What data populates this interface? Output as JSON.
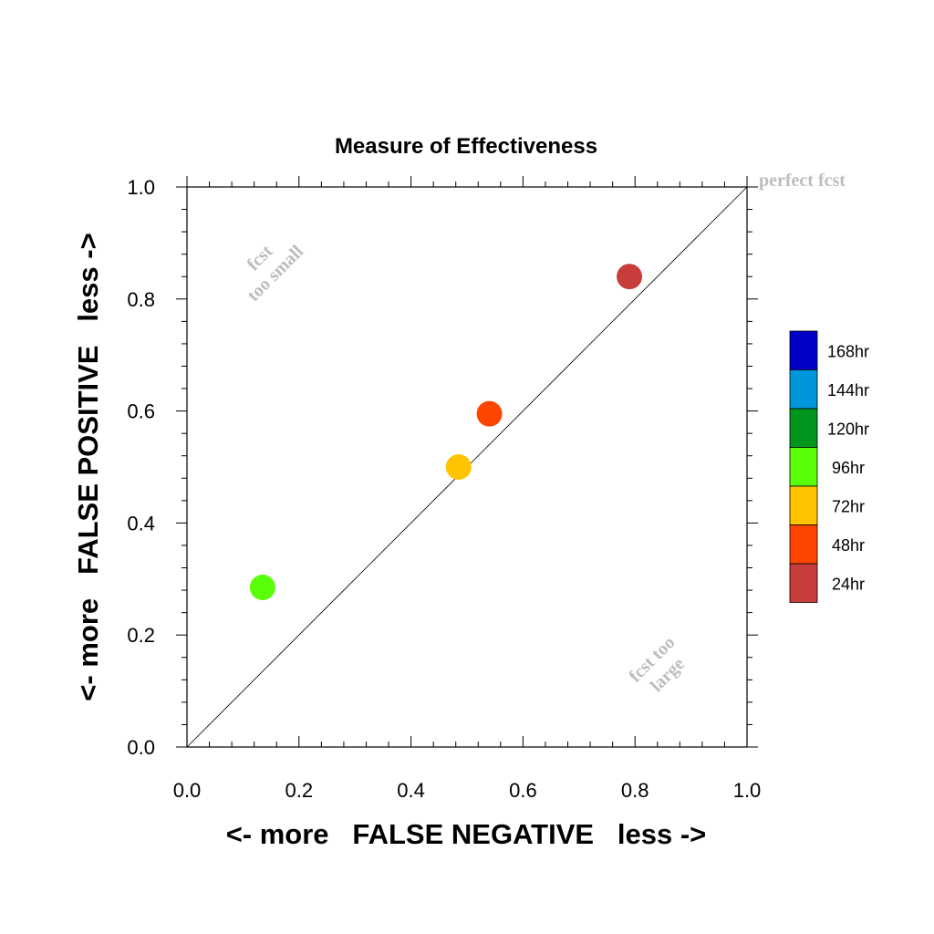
{
  "chart_data": {
    "type": "scatter",
    "title": "Measure of Effectiveness",
    "xlabel": "<- more   FALSE NEGATIVE   less ->",
    "ylabel": "<- more   FALSE POSITIVE   less ->",
    "xlim": [
      0,
      1
    ],
    "ylim": [
      0,
      1
    ],
    "x_ticks": [
      "0.0",
      "0.2",
      "0.4",
      "0.6",
      "0.8",
      "1.0"
    ],
    "y_ticks": [
      "0.0",
      "0.2",
      "0.4",
      "0.6",
      "0.8",
      "1.0"
    ],
    "grid": false,
    "diagonal_line": true,
    "annotations": [
      {
        "lines": [
          "fcst",
          "too small"
        ]
      },
      {
        "lines": [
          "fcst too",
          "large"
        ]
      },
      {
        "lines": [
          "perfect fcst"
        ]
      }
    ],
    "legend": {
      "placement": "right",
      "entries": [
        {
          "label": "168hr",
          "color": "#0000c8"
        },
        {
          "label": "144hr",
          "color": "#0096dc"
        },
        {
          "label": "120hr",
          "color": "#00961e"
        },
        {
          "label": "96hr",
          "color": "#5aff0a"
        },
        {
          "label": "72hr",
          "color": "#ffc300"
        },
        {
          "label": "48hr",
          "color": "#ff4600"
        },
        {
          "label": "24hr",
          "color": "#c83c3c"
        }
      ]
    },
    "points": [
      {
        "name": "24hr",
        "x": 0.79,
        "y": 0.84,
        "color": "#c83c3c"
      },
      {
        "name": "48hr",
        "x": 0.54,
        "y": 0.595,
        "color": "#ff4600"
      },
      {
        "name": "72hr",
        "x": 0.485,
        "y": 0.5,
        "color": "#ffc300"
      },
      {
        "name": "96hr",
        "x": 0.135,
        "y": 0.285,
        "color": "#5aff0a"
      }
    ]
  }
}
